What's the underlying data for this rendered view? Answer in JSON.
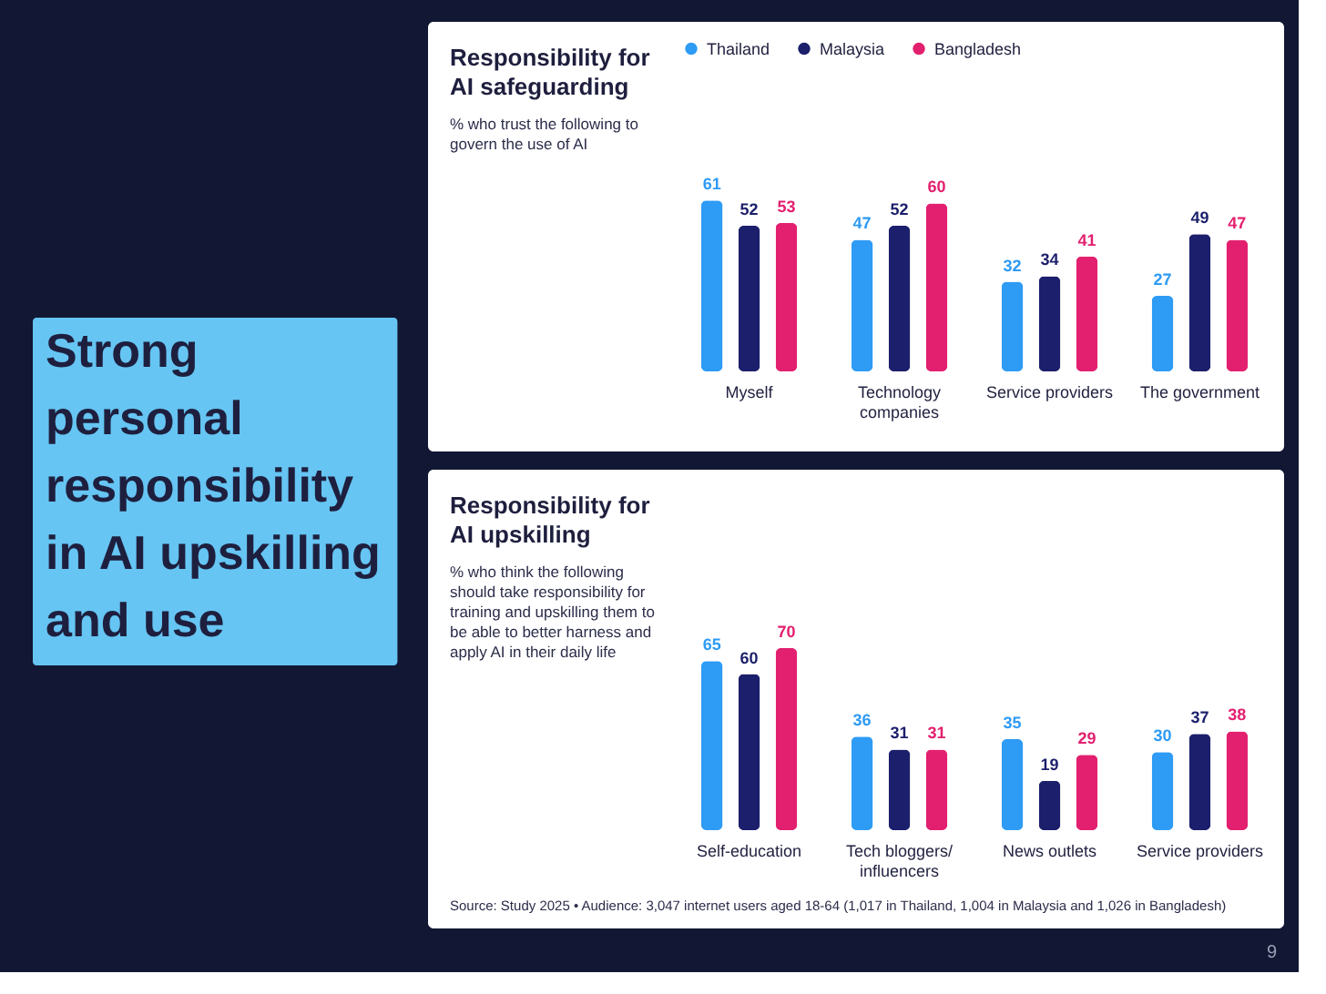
{
  "chart_data": [
    {
      "type": "other",
      "title": "Strong personal responsibility in AI upskilling and use"
    },
    {
      "type": "bar",
      "title": "Responsibility for AI safeguarding",
      "subtitle": "% who trust the following to govern the use of AI",
      "categories": [
        "Myself",
        "Technology companies",
        "Service providers",
        "The government"
      ],
      "series": [
        {
          "name": "Thailand",
          "color": "#2e9bf5",
          "values": [
            61,
            47,
            32,
            27
          ]
        },
        {
          "name": "Malaysia",
          "color": "#1c1f6b",
          "values": [
            52,
            52,
            34,
            49
          ]
        },
        {
          "name": "Bangladesh",
          "color": "#e3206f",
          "values": [
            53,
            60,
            41,
            47
          ]
        }
      ],
      "data_labels": true,
      "legend": "top",
      "grid": false,
      "tick_labels": "x"
    },
    {
      "type": "bar",
      "title": "Responsibility for AI upskilling",
      "subtitle": "% who think the following should take responsibility for training and upskilling them to be able to better harness and apply AI in their daily life",
      "categories": [
        "Self-education",
        "Tech bloggers/influencers",
        "News outlets",
        "Service providers"
      ],
      "series": [
        {
          "name": "Thailand",
          "color": "#2e9bf5",
          "values": [
            65,
            36,
            35,
            30
          ]
        },
        {
          "name": "Malaysia",
          "color": "#1c1f6b",
          "values": [
            60,
            31,
            19,
            37
          ]
        },
        {
          "name": "Bangladesh",
          "color": "#e3206f",
          "values": [
            70,
            31,
            29,
            38
          ]
        }
      ],
      "data_labels": true,
      "legend": "top",
      "grid": false,
      "tick_labels": "x",
      "annotations": [
        "Source: Study 2025 • Audience: 3,047 internet users aged 18-64 (1,017 in Thailand, 1,004 in Malaysia and 1,026 in Bangladesh)",
        "9"
      ]
    }
  ]
}
